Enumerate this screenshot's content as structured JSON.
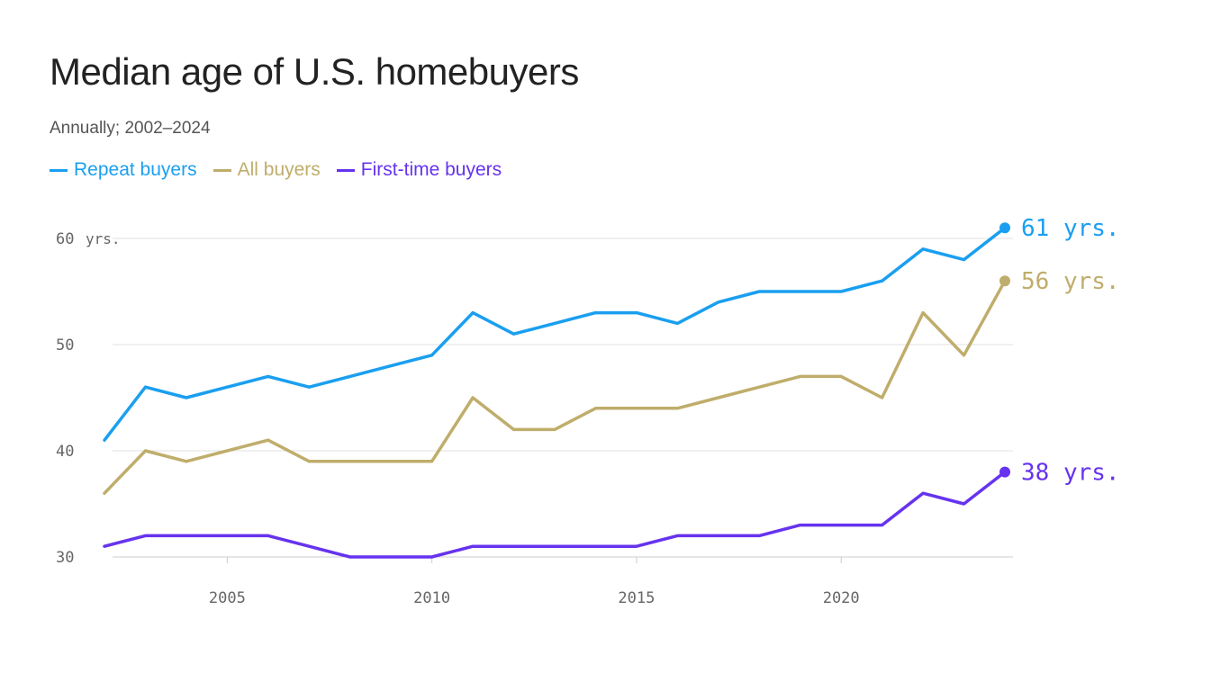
{
  "chart_data": {
    "type": "line",
    "title": "Median age of U.S. homebuyers",
    "subtitle": "Annually; 2002–2024",
    "y_unit": "yrs.",
    "ylim": [
      30,
      61
    ],
    "y_ticks": [
      30,
      40,
      50,
      60
    ],
    "x_ticks": [
      2005,
      2010,
      2015,
      2020
    ],
    "xlim": [
      2002,
      2024
    ],
    "x": [
      2002,
      2003,
      2004,
      2005,
      2006,
      2007,
      2008,
      2009,
      2010,
      2011,
      2012,
      2013,
      2014,
      2015,
      2016,
      2017,
      2018,
      2019,
      2020,
      2021,
      2022,
      2023,
      2024
    ],
    "series": [
      {
        "name": "Repeat buyers",
        "color": "#1a9ff0",
        "end_label": "61 yrs.",
        "values": [
          41,
          46,
          45,
          46,
          47,
          46,
          47,
          48,
          49,
          53,
          51,
          52,
          53,
          53,
          52,
          54,
          55,
          55,
          55,
          56,
          59,
          58,
          61
        ]
      },
      {
        "name": "All buyers",
        "color": "#bfad6b",
        "end_label": "56 yrs.",
        "values": [
          36,
          40,
          39,
          40,
          41,
          39,
          39,
          39,
          39,
          45,
          42,
          42,
          44,
          44,
          44,
          45,
          46,
          47,
          47,
          45,
          53,
          49,
          56
        ]
      },
      {
        "name": "First-time buyers",
        "color": "#6633ee",
        "end_label": "38 yrs.",
        "values": [
          31,
          32,
          32,
          32,
          32,
          31,
          30,
          30,
          30,
          31,
          31,
          31,
          31,
          31,
          32,
          32,
          32,
          33,
          33,
          33,
          36,
          35,
          38
        ]
      }
    ]
  }
}
